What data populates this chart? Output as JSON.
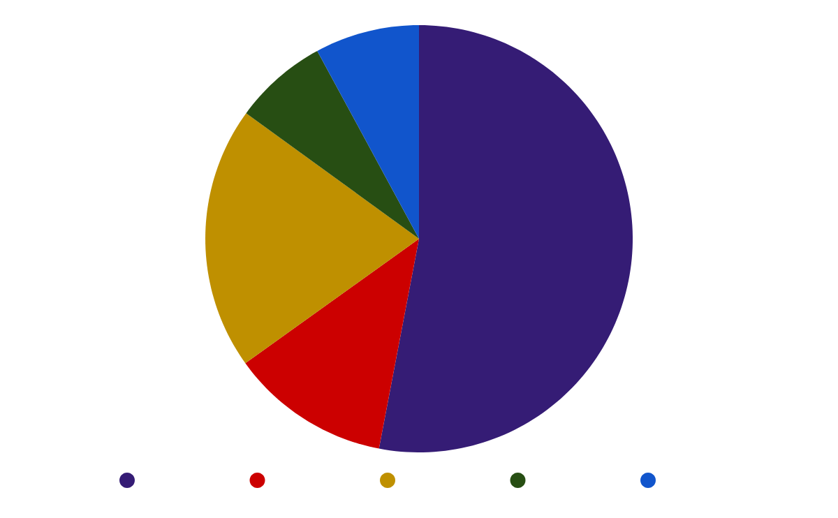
{
  "chart_data": {
    "type": "pie",
    "categories": [
      null,
      null,
      null,
      null,
      null
    ],
    "values": [
      53.0,
      12.1,
      19.9,
      7.1,
      7.9
    ],
    "colors": [
      "#351c75",
      "#cc0000",
      "#bf9000",
      "#274e13",
      "#1155cc"
    ]
  }
}
